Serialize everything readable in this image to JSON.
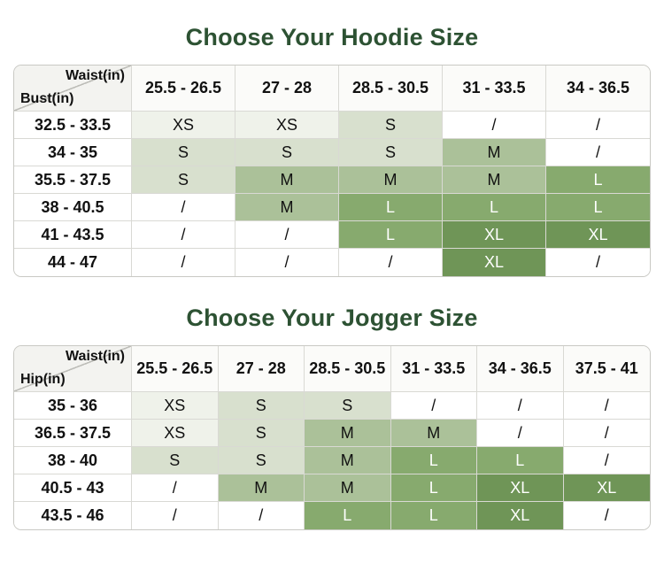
{
  "colors": {
    "title": "#2d5233",
    "border": "#d9d9d4",
    "header_bg": "#fbfbf9",
    "corner_bg": "#f3f3f0",
    "empty_cell": {
      "bg": "#ffffff",
      "text": "#111111"
    },
    "size_levels": {
      "XS": {
        "bg": "#eff2ea",
        "text": "#111111"
      },
      "S": {
        "bg": "#d8e0ce",
        "text": "#111111"
      },
      "M": {
        "bg": "#abc199",
        "text": "#111111"
      },
      "L": {
        "bg": "#87aa6e",
        "text": "#ffffff"
      },
      "XL": {
        "bg": "#6f9557",
        "text": "#ffffff"
      }
    }
  },
  "empty_marker": "/",
  "chart_data": [
    {
      "type": "table",
      "title": "Choose Your Hoodie Size",
      "corner_top_label": "Waist(in)",
      "corner_bottom_label": "Bust(in)",
      "columns": [
        "25.5 - 26.5",
        "27 - 28",
        "28.5 - 30.5",
        "31 - 33.5",
        "34 - 36.5"
      ],
      "row_labels": [
        "32.5 - 33.5",
        "34 - 35",
        "35.5 - 37.5",
        "38 - 40.5",
        "41 - 43.5",
        "44 - 47"
      ],
      "cells": [
        [
          "XS",
          "XS",
          "S",
          "/",
          "/"
        ],
        [
          "S",
          "S",
          "S",
          "M",
          "/"
        ],
        [
          "S",
          "M",
          "M",
          "M",
          "L"
        ],
        [
          "/",
          "M",
          "L",
          "L",
          "L"
        ],
        [
          "/",
          "/",
          "L",
          "XL",
          "XL"
        ],
        [
          "/",
          "/",
          "/",
          "XL",
          "/"
        ]
      ]
    },
    {
      "type": "table",
      "title": "Choose Your Jogger Size",
      "corner_top_label": "Waist(in)",
      "corner_bottom_label": "Hip(in)",
      "columns": [
        "25.5 - 26.5",
        "27 - 28",
        "28.5 - 30.5",
        "31 - 33.5",
        "34 - 36.5",
        "37.5 - 41"
      ],
      "row_labels": [
        "35 - 36",
        "36.5 - 37.5",
        "38 - 40",
        "40.5 - 43",
        "43.5 - 46"
      ],
      "cells": [
        [
          "XS",
          "S",
          "S",
          "/",
          "/",
          "/"
        ],
        [
          "XS",
          "S",
          "M",
          "M",
          "/",
          "/"
        ],
        [
          "S",
          "S",
          "M",
          "L",
          "L",
          "/"
        ],
        [
          "/",
          "M",
          "M",
          "L",
          "XL",
          "XL"
        ],
        [
          "/",
          "/",
          "L",
          "L",
          "XL",
          "/"
        ]
      ]
    }
  ]
}
